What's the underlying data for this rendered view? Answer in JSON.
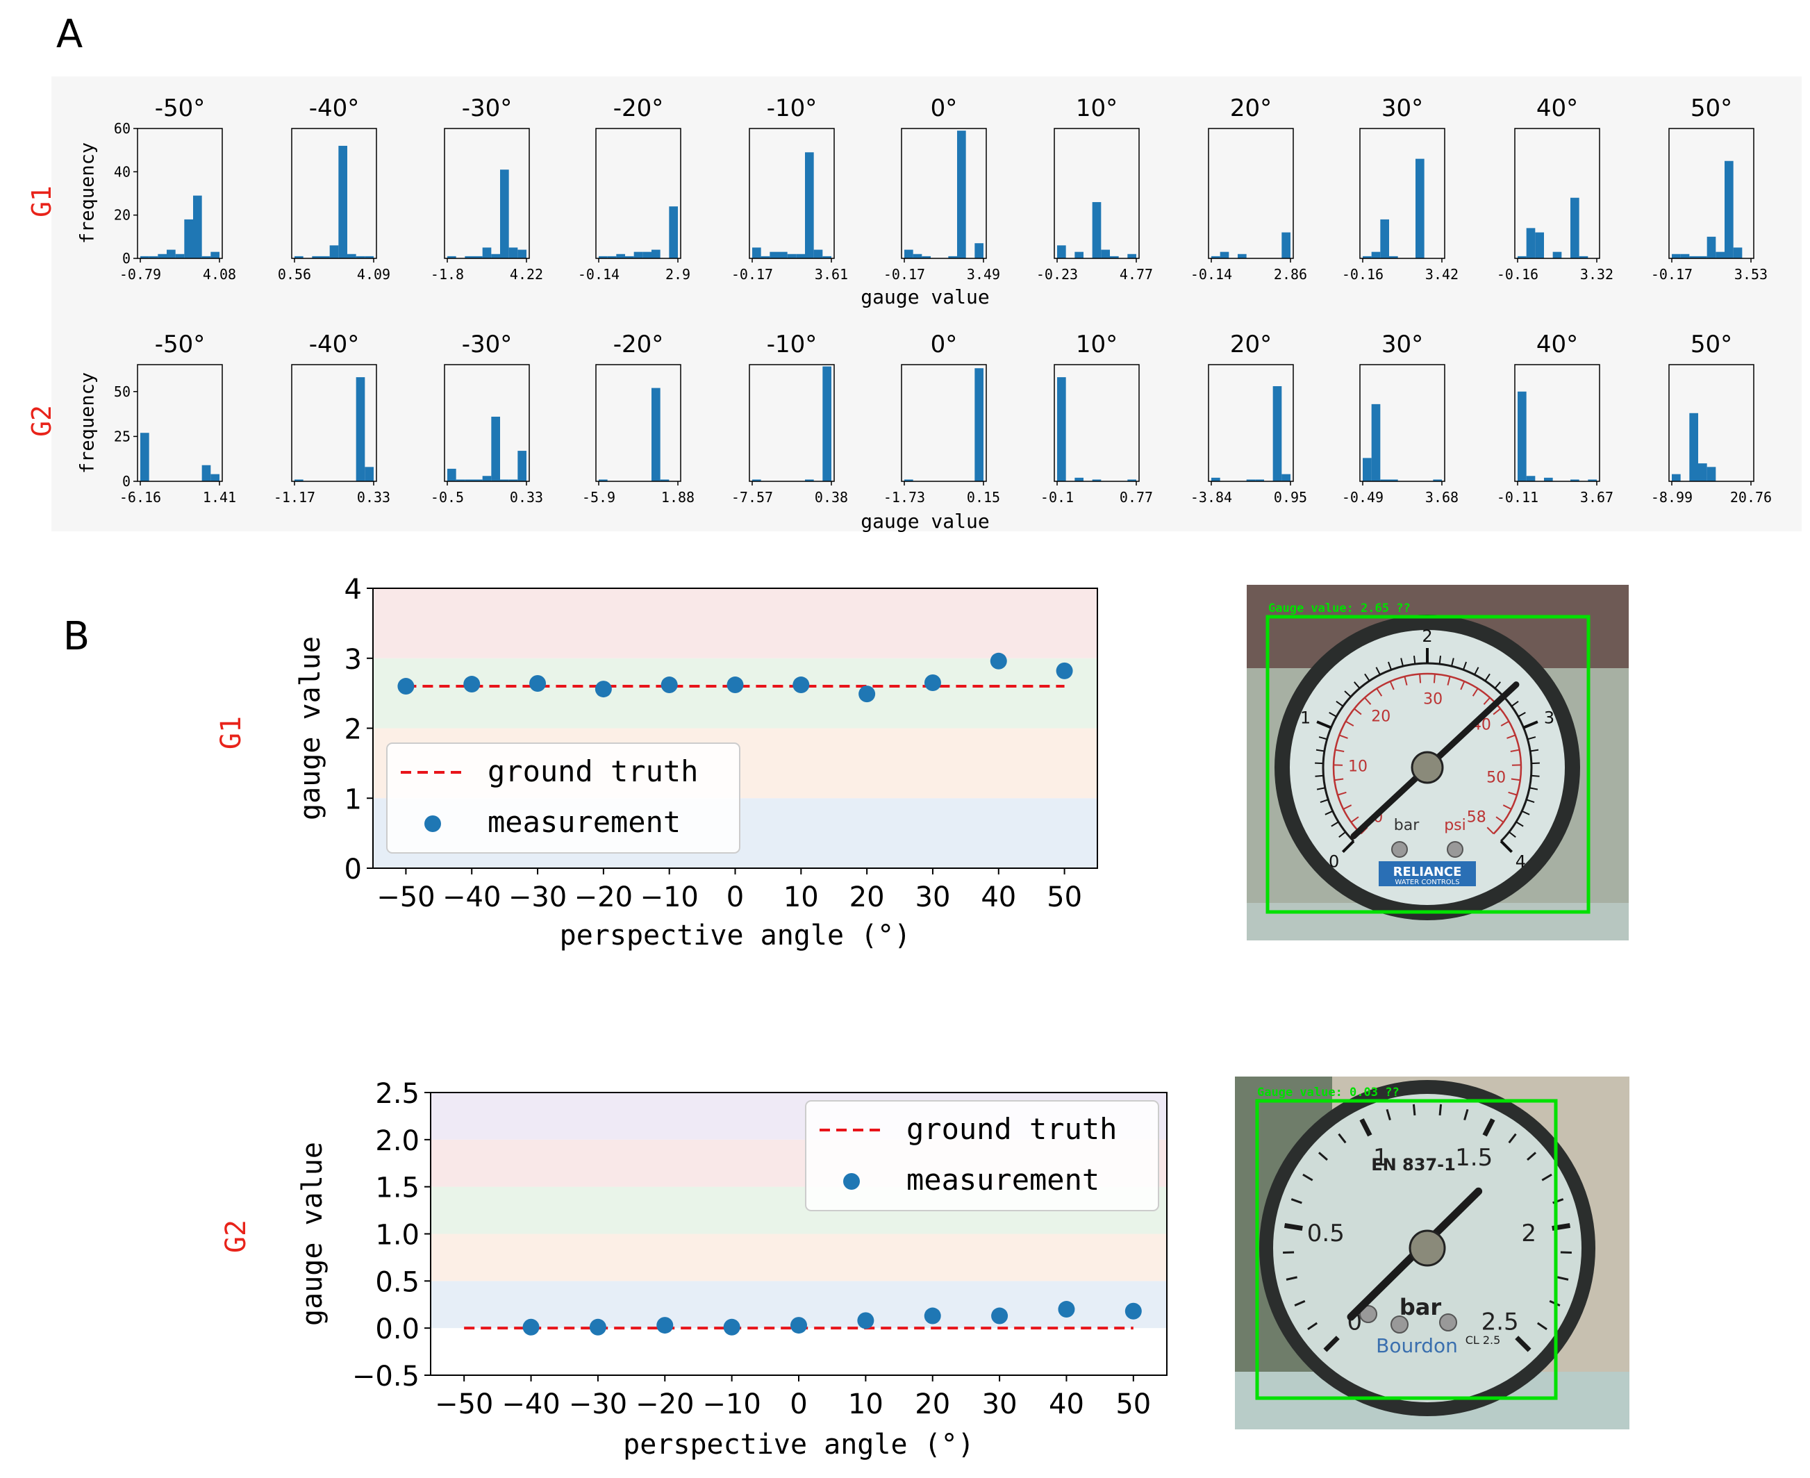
{
  "panel_labels": {
    "a": "A",
    "b": "B"
  },
  "colors": {
    "bar": "#1f77b4",
    "gt": "#e8141a",
    "group_label": "#e8231a",
    "panel_bg": "#f6f6f6",
    "gauge_box": "#00e000"
  },
  "panel_a": {
    "rows": [
      {
        "group": "G1",
        "ylabel": "frequency",
        "xlabel": "gauge value",
        "yticks": [
          0,
          20,
          40,
          60
        ]
      },
      {
        "group": "G2",
        "ylabel": "frequency",
        "xlabel": "gauge value",
        "yticks": [
          0,
          25,
          50
        ]
      }
    ]
  },
  "panel_b": {
    "charts": [
      {
        "group": "G1",
        "gauge_caption": "Gauge value: 2.65 ??"
      },
      {
        "group": "G2",
        "gauge_caption": "Gauge value: 0.03 ??"
      }
    ]
  },
  "gauges": {
    "g1": {
      "scale_bar": [
        "0",
        "1",
        "2",
        "3",
        "4"
      ],
      "scale_psi": [
        "0",
        "10",
        "20",
        "30",
        "40",
        "50",
        "58"
      ],
      "unit_bar": "bar",
      "unit_psi": "psi",
      "brand": "RELIANCE",
      "brand_sub": "WATER CONTROLS"
    },
    "g2": {
      "scale": [
        "0",
        "0.5",
        "1",
        "1.5",
        "2",
        "2.5"
      ],
      "model": "EN 837-1",
      "unit": "bar",
      "brand": "Bourdon",
      "class": "CL 2.5"
    }
  },
  "chart_data": [
    {
      "type": "bar",
      "group": "G1",
      "title": "-50°",
      "xlim_labels": [
        "-0.79",
        "4.08"
      ],
      "ylim": [
        0,
        60
      ],
      "bin_counts": [
        1,
        1,
        2,
        4,
        2,
        18,
        29,
        1,
        3
      ]
    },
    {
      "type": "bar",
      "group": "G1",
      "title": "-40°",
      "xlim_labels": [
        "0.56",
        "4.09"
      ],
      "ylim": [
        0,
        60
      ],
      "bin_counts": [
        1,
        0,
        1,
        1,
        6,
        52,
        2,
        1,
        1
      ]
    },
    {
      "type": "bar",
      "group": "G1",
      "title": "-30°",
      "xlim_labels": [
        "-1.8",
        "4.22"
      ],
      "ylim": [
        0,
        60
      ],
      "bin_counts": [
        1,
        0,
        1,
        1,
        5,
        2,
        41,
        5,
        4
      ]
    },
    {
      "type": "bar",
      "group": "G1",
      "title": "-20°",
      "xlim_labels": [
        "-0.14",
        "2.9"
      ],
      "ylim": [
        0,
        60
      ],
      "bin_counts": [
        1,
        1,
        2,
        1,
        3,
        3,
        4,
        0,
        24
      ]
    },
    {
      "type": "bar",
      "group": "G1",
      "title": "-10°",
      "xlim_labels": [
        "-0.17",
        "3.61"
      ],
      "ylim": [
        0,
        60
      ],
      "bin_counts": [
        5,
        1,
        3,
        3,
        2,
        2,
        49,
        4,
        1
      ]
    },
    {
      "type": "bar",
      "group": "G1",
      "title": "0°",
      "xlim_labels": [
        "-0.17",
        "3.49"
      ],
      "ylim": [
        0,
        60
      ],
      "bin_counts": [
        4,
        2,
        1,
        0,
        0,
        1,
        59,
        0,
        7
      ]
    },
    {
      "type": "bar",
      "group": "G1",
      "title": "10°",
      "xlim_labels": [
        "-0.23",
        "4.77"
      ],
      "ylim": [
        0,
        60
      ],
      "bin_counts": [
        6,
        0,
        3,
        0,
        26,
        4,
        1,
        0,
        2
      ]
    },
    {
      "type": "bar",
      "group": "G1",
      "title": "20°",
      "xlim_labels": [
        "-0.14",
        "2.86"
      ],
      "ylim": [
        0,
        60
      ],
      "bin_counts": [
        1,
        3,
        0,
        2,
        0,
        0,
        0,
        0,
        12
      ]
    },
    {
      "type": "bar",
      "group": "G1",
      "title": "30°",
      "xlim_labels": [
        "-0.16",
        "3.42"
      ],
      "ylim": [
        0,
        60
      ],
      "bin_counts": [
        1,
        3,
        18,
        1,
        0,
        0,
        46,
        0,
        0
      ]
    },
    {
      "type": "bar",
      "group": "G1",
      "title": "40°",
      "xlim_labels": [
        "-0.16",
        "3.32"
      ],
      "ylim": [
        0,
        60
      ],
      "bin_counts": [
        1,
        14,
        12,
        0,
        3,
        0,
        28,
        1,
        0
      ]
    },
    {
      "type": "bar",
      "group": "G1",
      "title": "50°",
      "xlim_labels": [
        "-0.17",
        "3.53"
      ],
      "ylim": [
        0,
        60
      ],
      "bin_counts": [
        2,
        2,
        1,
        1,
        10,
        3,
        45,
        5,
        0
      ]
    },
    {
      "type": "bar",
      "group": "G2",
      "title": "-50°",
      "xlim_labels": [
        "-6.16",
        "1.41"
      ],
      "ylim": [
        0,
        65
      ],
      "bin_counts": [
        27,
        0,
        0,
        0,
        0,
        0,
        0,
        9,
        4
      ]
    },
    {
      "type": "bar",
      "group": "G2",
      "title": "-40°",
      "xlim_labels": [
        "-1.17",
        "0.33"
      ],
      "ylim": [
        0,
        65
      ],
      "bin_counts": [
        1,
        0,
        0,
        0,
        0,
        0,
        0,
        58,
        8
      ]
    },
    {
      "type": "bar",
      "group": "G2",
      "title": "-30°",
      "xlim_labels": [
        "-0.5",
        "0.33"
      ],
      "ylim": [
        0,
        65
      ],
      "bin_counts": [
        7,
        1,
        1,
        1,
        3,
        36,
        1,
        1,
        17
      ]
    },
    {
      "type": "bar",
      "group": "G2",
      "title": "-20°",
      "xlim_labels": [
        "-5.9",
        "1.88"
      ],
      "ylim": [
        0,
        65
      ],
      "bin_counts": [
        1,
        0,
        0,
        0,
        0,
        0,
        52,
        1,
        0
      ]
    },
    {
      "type": "bar",
      "group": "G2",
      "title": "-10°",
      "xlim_labels": [
        "-7.57",
        "0.38"
      ],
      "ylim": [
        0,
        65
      ],
      "bin_counts": [
        1,
        0,
        0,
        0,
        0,
        0,
        1,
        0,
        64
      ]
    },
    {
      "type": "bar",
      "group": "G2",
      "title": "0°",
      "xlim_labels": [
        "-1.73",
        "0.15"
      ],
      "ylim": [
        0,
        65
      ],
      "bin_counts": [
        1,
        0,
        0,
        0,
        0,
        0,
        0,
        0,
        63
      ]
    },
    {
      "type": "bar",
      "group": "G2",
      "title": "10°",
      "xlim_labels": [
        "-0.1",
        "0.77"
      ],
      "ylim": [
        0,
        65
      ],
      "bin_counts": [
        58,
        0,
        2,
        0,
        1,
        0,
        0,
        0,
        1
      ]
    },
    {
      "type": "bar",
      "group": "G2",
      "title": "20°",
      "xlim_labels": [
        "-3.84",
        "0.95"
      ],
      "ylim": [
        0,
        65
      ],
      "bin_counts": [
        2,
        0,
        0,
        0,
        1,
        1,
        0,
        53,
        4
      ]
    },
    {
      "type": "bar",
      "group": "G2",
      "title": "30°",
      "xlim_labels": [
        "-0.49",
        "3.68"
      ],
      "ylim": [
        0,
        65
      ],
      "bin_counts": [
        13,
        43,
        1,
        1,
        0,
        0,
        0,
        0,
        1
      ]
    },
    {
      "type": "bar",
      "group": "G2",
      "title": "40°",
      "xlim_labels": [
        "-0.11",
        "3.67"
      ],
      "ylim": [
        0,
        65
      ],
      "bin_counts": [
        50,
        3,
        0,
        2,
        0,
        0,
        1,
        0,
        1
      ]
    },
    {
      "type": "bar",
      "group": "G2",
      "title": "50°",
      "xlim_labels": [
        "-8.99",
        "20.76"
      ],
      "ylim": [
        0,
        65
      ],
      "bin_counts": [
        4,
        0,
        38,
        10,
        8,
        0,
        0,
        0,
        0
      ]
    },
    {
      "type": "scatter",
      "group": "G1",
      "xlabel": "perspective angle (°)",
      "ylabel": "gauge value",
      "xlim": [
        -55,
        55
      ],
      "ylim": [
        0,
        4
      ],
      "xticks": [
        -50,
        -40,
        -30,
        -20,
        -10,
        0,
        10,
        20,
        30,
        40,
        50
      ],
      "yticks": [
        0,
        1,
        2,
        3,
        4
      ],
      "yticklabels": [
        "0",
        "1",
        "2",
        "3",
        "4"
      ],
      "bands": [
        [
          0,
          1,
          "#e6eef7"
        ],
        [
          1,
          2,
          "#fcefe6"
        ],
        [
          2,
          3,
          "#e9f4e9"
        ],
        [
          3,
          4,
          "#f9e8e8"
        ]
      ],
      "ground_truth": {
        "name": "ground truth",
        "x": [
          -50,
          50
        ],
        "y": [
          2.6,
          2.6
        ]
      },
      "measurement": {
        "name": "measurement",
        "x": [
          -50,
          -40,
          -30,
          -20,
          -10,
          0,
          10,
          20,
          30,
          40,
          50
        ],
        "y": [
          2.6,
          2.63,
          2.64,
          2.56,
          2.62,
          2.62,
          2.62,
          2.49,
          2.65,
          2.96,
          2.82
        ]
      },
      "legend": "lower-left"
    },
    {
      "type": "scatter",
      "group": "G2",
      "xlabel": "perspective angle (°)",
      "ylabel": "gauge value",
      "xlim": [
        -55,
        55
      ],
      "ylim": [
        -0.5,
        2.5
      ],
      "xticks": [
        -50,
        -40,
        -30,
        -20,
        -10,
        0,
        10,
        20,
        30,
        40,
        50
      ],
      "yticks": [
        -0.5,
        0.0,
        0.5,
        1.0,
        1.5,
        2.0,
        2.5
      ],
      "yticklabels": [
        "−0.5",
        "0.0",
        "0.5",
        "1.0",
        "1.5",
        "2.0",
        "2.5"
      ],
      "bands": [
        [
          0,
          0.5,
          "#e6eef7"
        ],
        [
          0.5,
          1.0,
          "#fcefe6"
        ],
        [
          1.0,
          1.5,
          "#e9f4e9"
        ],
        [
          1.5,
          2.0,
          "#f9e8e8"
        ],
        [
          2.0,
          2.5,
          "#efeaf6"
        ]
      ],
      "ground_truth": {
        "name": "ground truth",
        "x": [
          -50,
          50
        ],
        "y": [
          0.0,
          0.0
        ]
      },
      "measurement": {
        "name": "measurement",
        "x": [
          -40,
          -30,
          -20,
          -10,
          0,
          10,
          20,
          30,
          40,
          50
        ],
        "y": [
          0.01,
          0.01,
          0.03,
          0.01,
          0.03,
          0.08,
          0.13,
          0.13,
          0.2,
          0.18
        ]
      },
      "legend": "upper-right"
    }
  ]
}
